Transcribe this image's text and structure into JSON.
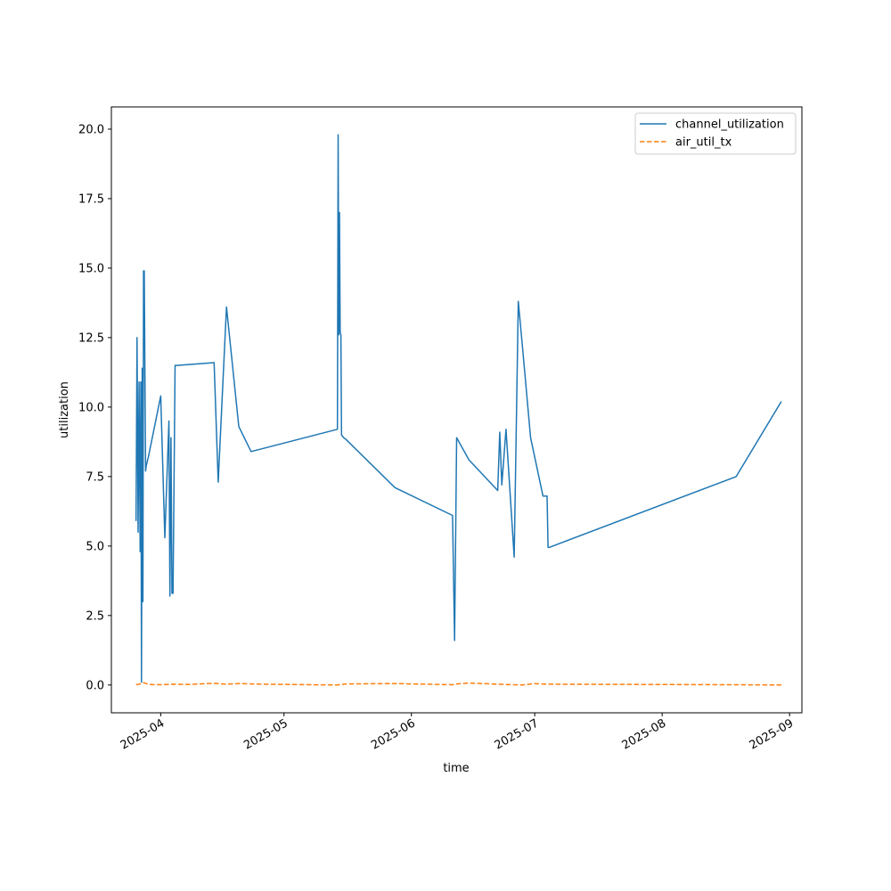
{
  "chart_data": {
    "type": "line",
    "title": "",
    "xlabel": "time",
    "ylabel": "utilization",
    "xlim": [
      "2025-03-20",
      "2025-09-04"
    ],
    "ylim": [
      -1.0,
      20.8
    ],
    "x_ticks": [
      "2025-04",
      "2025-05",
      "2025-06",
      "2025-07",
      "2025-08",
      "2025-09"
    ],
    "y_ticks": [
      0.0,
      2.5,
      5.0,
      7.5,
      10.0,
      12.5,
      15.0,
      17.5,
      20.0
    ],
    "grid": false,
    "legend": "top-right",
    "series": [
      {
        "name": "channel_utilization",
        "color": "#1f77b4",
        "style": "solid",
        "x": [
          "2025-03-26 00:00",
          "2025-03-26 06:00",
          "2025-03-26 12:00",
          "2025-03-26 18:00",
          "2025-03-27 00:00",
          "2025-03-27 04:00",
          "2025-03-27 08:00",
          "2025-03-27 12:00",
          "2025-03-27 16:00",
          "2025-03-27 20:00",
          "2025-03-28 00:00",
          "2025-03-28 04:00",
          "2025-03-28 08:00",
          "2025-03-28 12:00",
          "2025-03-28 16:00",
          "2025-03-28 20:00",
          "2025-03-29 00:00",
          "2025-04-01 00:00",
          "2025-04-02 00:00",
          "2025-04-03 00:00",
          "2025-04-03 06:00",
          "2025-04-03 12:00",
          "2025-04-03 18:00",
          "2025-04-04 00:00",
          "2025-04-04 12:00",
          "2025-04-05 00:00",
          "2025-04-14 00:00",
          "2025-04-15 00:00",
          "2025-04-16 00:00",
          "2025-04-17 00:00",
          "2025-04-20 00:00",
          "2025-04-23 00:00",
          "2025-05-14 00:00",
          "2025-05-14 04:00",
          "2025-05-14 08:00",
          "2025-05-14 12:00",
          "2025-05-14 16:00",
          "2025-05-14 20:00",
          "2025-05-15 00:00",
          "2025-05-15 06:00",
          "2025-05-15 12:00",
          "2025-05-16 00:00",
          "2025-05-28 00:00",
          "2025-06-11 00:00",
          "2025-06-11 12:00",
          "2025-06-12 00:00",
          "2025-06-15 00:00",
          "2025-06-22 00:00",
          "2025-06-22 12:00",
          "2025-06-23 00:00",
          "2025-06-24 00:00",
          "2025-06-26 00:00",
          "2025-06-27 00:00",
          "2025-06-28 00:00",
          "2025-06-30 00:00",
          "2025-07-03 00:00",
          "2025-07-04 00:00",
          "2025-07-04 06:00",
          "2025-07-04 12:00",
          "2025-08-19 00:00",
          "2025-08-30 00:00"
        ],
        "values": [
          5.9,
          12.5,
          5.5,
          10.9,
          4.8,
          10.9,
          0.1,
          11.4,
          3.0,
          14.9,
          14.9,
          11.0,
          7.7,
          7.9,
          8.0,
          8.1,
          8.2,
          10.4,
          5.3,
          9.5,
          3.2,
          8.9,
          3.3,
          3.3,
          11.5,
          11.5,
          11.6,
          7.3,
          10.5,
          13.6,
          9.3,
          8.4,
          9.2,
          19.8,
          12.6,
          17.0,
          12.7,
          12.6,
          9.0,
          8.95,
          8.9,
          8.85,
          7.1,
          6.1,
          1.6,
          8.9,
          8.1,
          7.0,
          9.1,
          7.2,
          9.2,
          4.6,
          13.8,
          12.2,
          8.9,
          6.8,
          6.8,
          4.95,
          4.95,
          7.5,
          10.2
        ]
      },
      {
        "name": "air_util_tx",
        "color": "#ff7f0e",
        "style": "dashed",
        "x": [
          "2025-03-26 00:00",
          "2025-03-27 00:00",
          "2025-03-28 00:00",
          "2025-03-29 00:00",
          "2025-04-01 00:00",
          "2025-04-04 00:00",
          "2025-04-08 00:00",
          "2025-04-14 00:00",
          "2025-04-17 00:00",
          "2025-04-20 00:00",
          "2025-04-26 00:00",
          "2025-05-14 00:00",
          "2025-05-16 00:00",
          "2025-05-28 00:00",
          "2025-06-11 00:00",
          "2025-06-12 00:00",
          "2025-06-15 00:00",
          "2025-06-22 00:00",
          "2025-06-28 00:00",
          "2025-07-01 00:00",
          "2025-07-04 00:00",
          "2025-08-19 00:00",
          "2025-08-30 00:00"
        ],
        "values": [
          0.01,
          0.04,
          0.08,
          0.02,
          0.01,
          0.03,
          0.02,
          0.06,
          0.03,
          0.05,
          0.03,
          0.0,
          0.04,
          0.05,
          0.01,
          0.04,
          0.07,
          0.03,
          0.0,
          0.05,
          0.03,
          0.01,
          0.0
        ]
      }
    ]
  }
}
